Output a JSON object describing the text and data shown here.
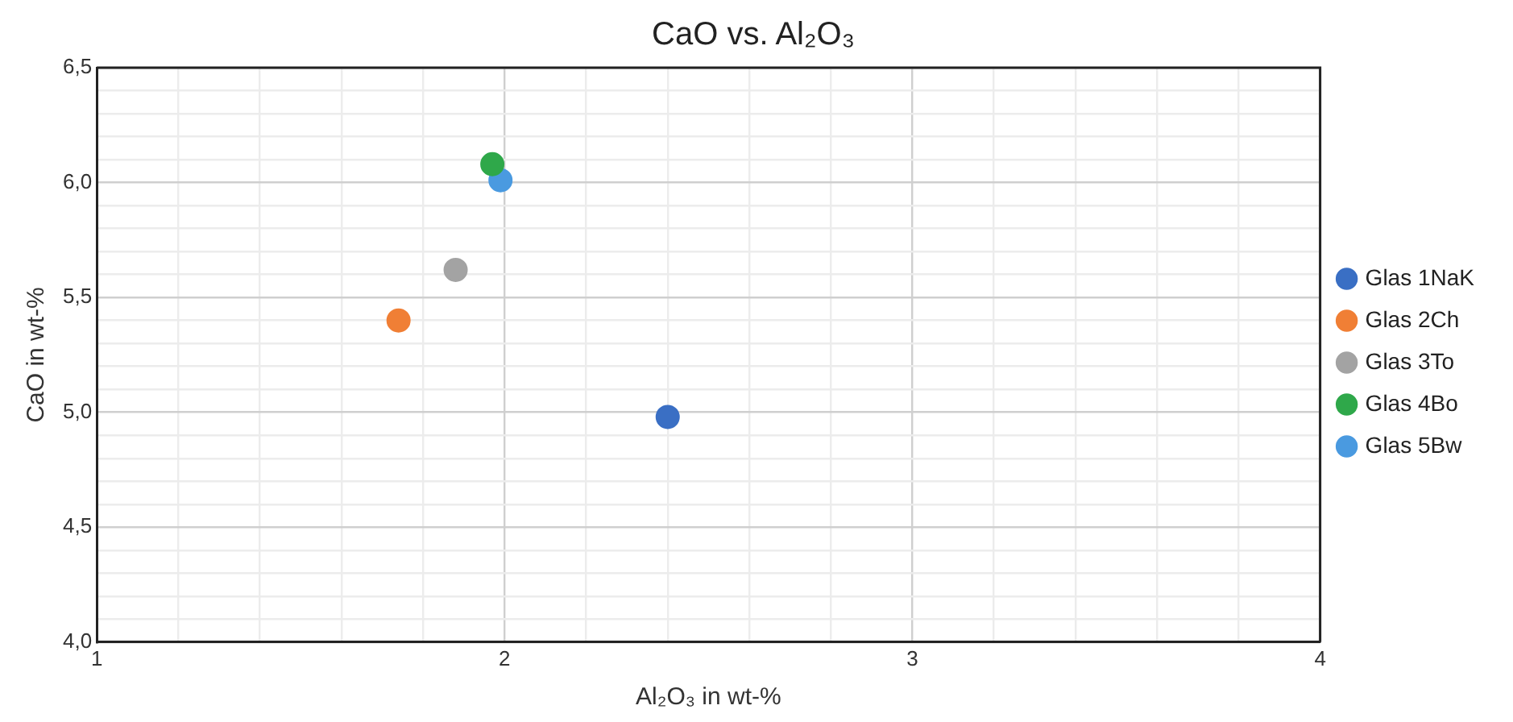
{
  "chart_data": {
    "type": "scatter",
    "title": "CaO vs. Al₂O₃",
    "xlabel": "Al₂O₃ in wt-%",
    "ylabel": "CaO in wt-%",
    "xlim": [
      1,
      4
    ],
    "xticks": [
      1,
      {
        "value": 1.2,
        "label": null
      },
      {
        "value": 1.4,
        "label": null
      },
      {
        "value": 1.6,
        "label": null
      },
      {
        "value": 1.8,
        "label": null
      },
      2,
      {
        "value": 2.2,
        "label": null
      },
      {
        "value": 2.4,
        "label": null
      },
      {
        "value": 2.6,
        "label": null
      },
      {
        "value": 2.8,
        "label": null
      },
      3,
      {
        "value": 3.2,
        "label": null
      },
      {
        "value": 3.4,
        "label": null
      },
      {
        "value": 3.6,
        "label": null
      },
      {
        "value": 3.8,
        "label": null
      },
      4
    ],
    "ylim": [
      4,
      6.5
    ],
    "yticks": [
      {
        "value": 4,
        "label": "4,0"
      },
      {
        "value": 4.1,
        "label": null
      },
      {
        "value": 4.2,
        "label": null
      },
      {
        "value": 4.3,
        "label": null
      },
      {
        "value": 4.4,
        "label": null
      },
      {
        "value": 4.5,
        "label": "4,5"
      },
      {
        "value": 4.6,
        "label": null
      },
      {
        "value": 4.7,
        "label": null
      },
      {
        "value": 4.8,
        "label": null
      },
      {
        "value": 4.9,
        "label": null
      },
      {
        "value": 5,
        "label": "5,0"
      },
      {
        "value": 5.1,
        "label": null
      },
      {
        "value": 5.2,
        "label": null
      },
      {
        "value": 5.3,
        "label": null
      },
      {
        "value": 5.4,
        "label": null
      },
      {
        "value": 5.5,
        "label": "5,5"
      },
      {
        "value": 5.6,
        "label": null
      },
      {
        "value": 5.7,
        "label": null
      },
      {
        "value": 5.8,
        "label": null
      },
      {
        "value": 5.9,
        "label": null
      },
      {
        "value": 6,
        "label": "6,0"
      },
      {
        "value": 6.1,
        "label": null
      },
      {
        "value": 6.2,
        "label": null
      },
      {
        "value": 6.3,
        "label": null
      },
      {
        "value": 6.4,
        "label": null
      },
      {
        "value": 6.5,
        "label": "6,5"
      }
    ],
    "grid": true,
    "legend": "right",
    "marker": "circle",
    "series": [
      {
        "name": "Glas 1NaK",
        "color": "#3a6fc4",
        "x": [
          2.4
        ],
        "values": [
          4.98
        ]
      },
      {
        "name": "Glas 2Ch",
        "color": "#f07f35",
        "x": [
          1.74
        ],
        "values": [
          5.4
        ]
      },
      {
        "name": "Glas 3To",
        "color": "#a3a3a3",
        "x": [
          1.88
        ],
        "values": [
          5.62
        ]
      },
      {
        "name": "Glas 4Bo",
        "color": "#2fa84a",
        "x": [
          1.97
        ],
        "values": [
          6.08
        ]
      },
      {
        "name": "Glas 5Bw",
        "color": "#4a9ae0",
        "x": [
          1.99
        ],
        "values": [
          6.01
        ]
      }
    ]
  }
}
